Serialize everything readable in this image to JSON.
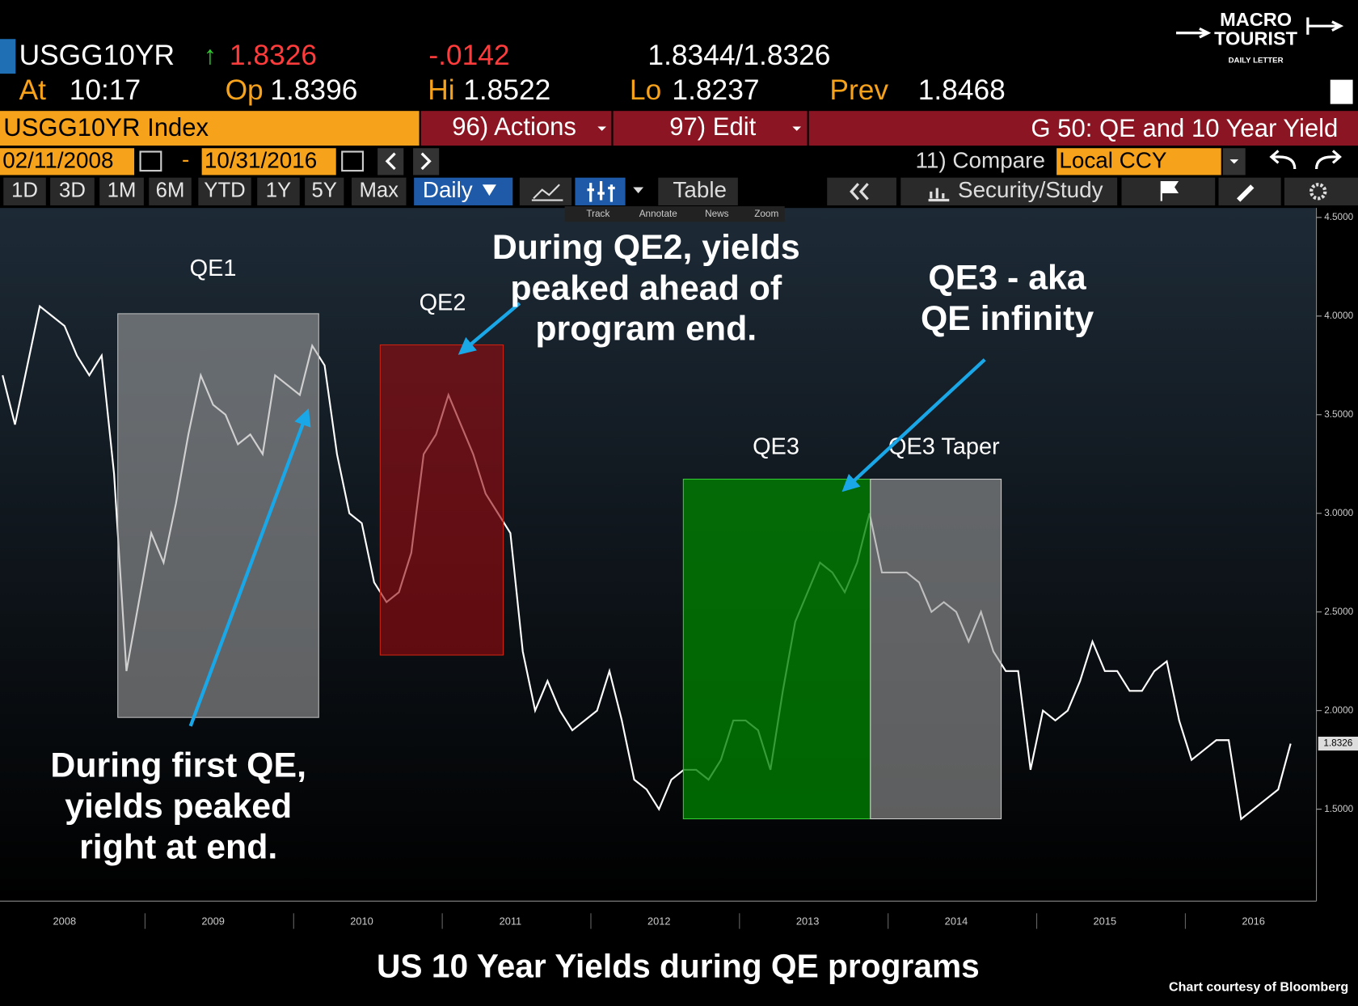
{
  "header": {
    "ticker": "USGG10YR",
    "last": "1.8326",
    "change": "-.0142",
    "bid_ask": "1.8344/1.8326",
    "at_label": "At",
    "at": "10:17",
    "open_label": "Op",
    "open": "1.8396",
    "high_label": "Hi",
    "high": "1.8522",
    "low_label": "Lo",
    "low": "1.8237",
    "prev_label": "Prev",
    "prev": "1.8468"
  },
  "logo": {
    "line1": "MACRO",
    "line2": "TOURIST",
    "line3": "DAILY LETTER"
  },
  "toolbar": {
    "security": "USGG10YR Index",
    "actions": "96) Actions",
    "edit": "97) Edit",
    "page_title": "G 50: QE and 10 Year Yield",
    "start_date": "02/11/2008",
    "date_sep": "-",
    "end_date": "10/31/2016",
    "compare": "11) Compare",
    "currency": "Local CCY",
    "periods": [
      "1D",
      "3D",
      "1M",
      "6M",
      "YTD",
      "1Y",
      "5Y",
      "Max"
    ],
    "frequency": "Daily",
    "table": "Table",
    "study": "Security/Study",
    "tools": [
      "Track",
      "Annotate",
      "News",
      "Zoom"
    ]
  },
  "chart_data": {
    "type": "line",
    "title": "US 10 Year Yields during QE programs",
    "credit": "Chart courtesy of Bloomberg",
    "color": "#ffffff",
    "categories": [
      null,
      null,
      null,
      null,
      null,
      "2008",
      null,
      null,
      null,
      null,
      null,
      null,
      null,
      null,
      null,
      null,
      null,
      "2009",
      null,
      null,
      null,
      null,
      null,
      null,
      null,
      null,
      null,
      null,
      null,
      "2010",
      null,
      null,
      null,
      null,
      null,
      null,
      null,
      null,
      null,
      null,
      null,
      "2011",
      null,
      null,
      null,
      null,
      null,
      null,
      null,
      null,
      null,
      null,
      null,
      "2012",
      null,
      null,
      null,
      null,
      null,
      null,
      null,
      null,
      null,
      null,
      null,
      "2013",
      null,
      null,
      null,
      null,
      null,
      null,
      null,
      null,
      null,
      null,
      null,
      "2014",
      null,
      null,
      null,
      null,
      null,
      null,
      null,
      null,
      null,
      null,
      null,
      "2015",
      null,
      null,
      null,
      null,
      null,
      null,
      null,
      null,
      null,
      null,
      null,
      "2016",
      null,
      null,
      null
    ],
    "values": [
      3.7,
      3.45,
      3.75,
      4.05,
      4.0,
      3.95,
      3.8,
      3.7,
      3.8,
      3.2,
      2.2,
      2.55,
      2.9,
      2.75,
      3.05,
      3.4,
      3.7,
      3.55,
      3.5,
      3.35,
      3.4,
      3.3,
      3.7,
      3.65,
      3.6,
      3.85,
      3.75,
      3.3,
      3.0,
      2.95,
      2.65,
      2.55,
      2.6,
      2.8,
      3.3,
      3.4,
      3.6,
      3.45,
      3.3,
      3.1,
      3.0,
      2.9,
      2.3,
      2.0,
      2.15,
      2.0,
      1.9,
      1.95,
      2.0,
      2.2,
      1.95,
      1.65,
      1.6,
      1.5,
      1.65,
      1.7,
      1.7,
      1.65,
      1.75,
      1.95,
      1.95,
      1.9,
      1.7,
      2.1,
      2.45,
      2.6,
      2.75,
      2.7,
      2.6,
      2.75,
      3.0,
      2.7,
      2.7,
      2.7,
      2.65,
      2.5,
      2.55,
      2.5,
      2.35,
      2.5,
      2.3,
      2.2,
      2.2,
      1.7,
      2.0,
      1.95,
      2.0,
      2.15,
      2.35,
      2.2,
      2.2,
      2.1,
      2.1,
      2.2,
      2.25,
      1.95,
      1.75,
      1.8,
      1.85,
      1.85,
      1.45,
      1.5,
      1.55,
      1.6,
      1.8326
    ],
    "ylim": [
      1.034,
      4.548
    ],
    "yticks": [
      {
        "value": 4.5,
        "label": "4.5000"
      },
      {
        "value": 4.0,
        "label": "4.0000"
      },
      {
        "value": 3.5,
        "label": "3.5000"
      },
      {
        "value": 3.0,
        "label": "3.0000"
      },
      {
        "value": 2.5,
        "label": "2.5000"
      },
      {
        "value": 2.0,
        "label": "2.0000"
      },
      {
        "value": 1.5,
        "label": "1.5000"
      }
    ],
    "regions": [
      {
        "label": "QE1"
      },
      {
        "label": "QE2"
      },
      {
        "label": "QE3"
      },
      {
        "label": "QE3 Taper"
      }
    ],
    "annotations": [
      {
        "lines": [
          "During first QE,",
          "yields peaked",
          "right at end."
        ]
      },
      {
        "lines": [
          "During QE2, yields",
          "peaked ahead of",
          "program end."
        ]
      },
      {
        "lines": [
          "QE3 - aka",
          "QE infinity"
        ]
      }
    ]
  }
}
